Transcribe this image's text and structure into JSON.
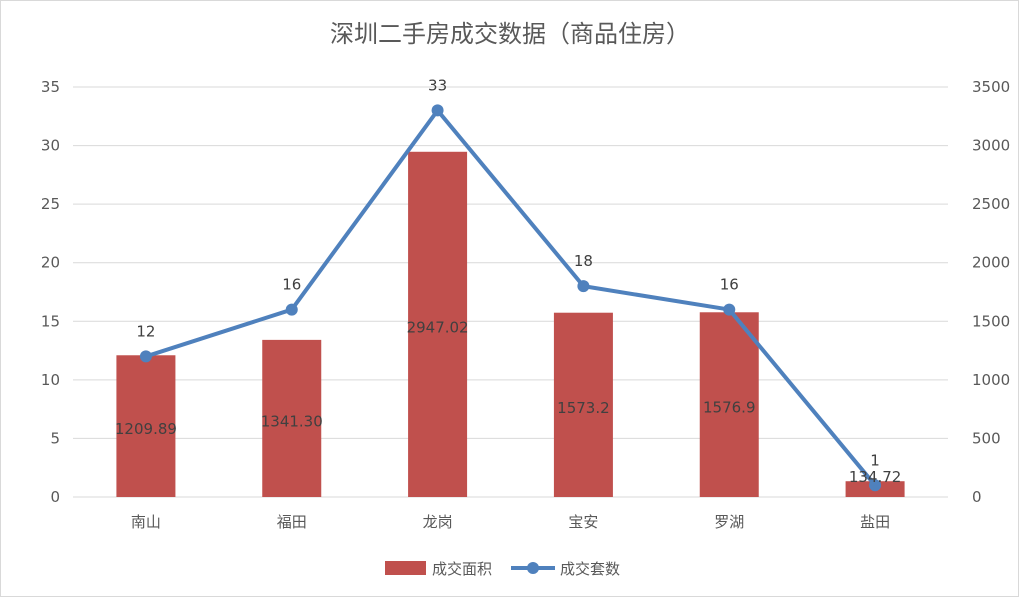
{
  "chart_data": {
    "type": "bar+line",
    "title": "深圳二手房成交数据（商品住房）",
    "categories": [
      "南山",
      "福田",
      "龙岗",
      "宝安",
      "罗湖",
      "盐田"
    ],
    "series": [
      {
        "name": "成交面积",
        "kind": "bar",
        "axis": "right",
        "values": [
          1209.89,
          1341.3,
          2947.02,
          1573.2,
          1576.9,
          134.72
        ],
        "labels": [
          "1209.89",
          "1341.30",
          "2947.02",
          "1573.2",
          "1576.9",
          "134.72"
        ],
        "color": "#c0504d"
      },
      {
        "name": "成交套数",
        "kind": "line",
        "axis": "left",
        "values": [
          12,
          16,
          33,
          18,
          16,
          1
        ],
        "labels": [
          "12",
          "16",
          "33",
          "18",
          "16",
          "1"
        ],
        "color": "#4f81bd"
      }
    ],
    "y_left": {
      "min": 0,
      "max": 35,
      "ticks": [
        "0",
        "5",
        "10",
        "15",
        "20",
        "25",
        "30",
        "35"
      ]
    },
    "y_right": {
      "min": 0,
      "max": 3500,
      "ticks": [
        "0",
        "500",
        "1000",
        "1500",
        "2000",
        "2500",
        "3000",
        "3500"
      ]
    },
    "grid": true,
    "legend": "bottom"
  }
}
